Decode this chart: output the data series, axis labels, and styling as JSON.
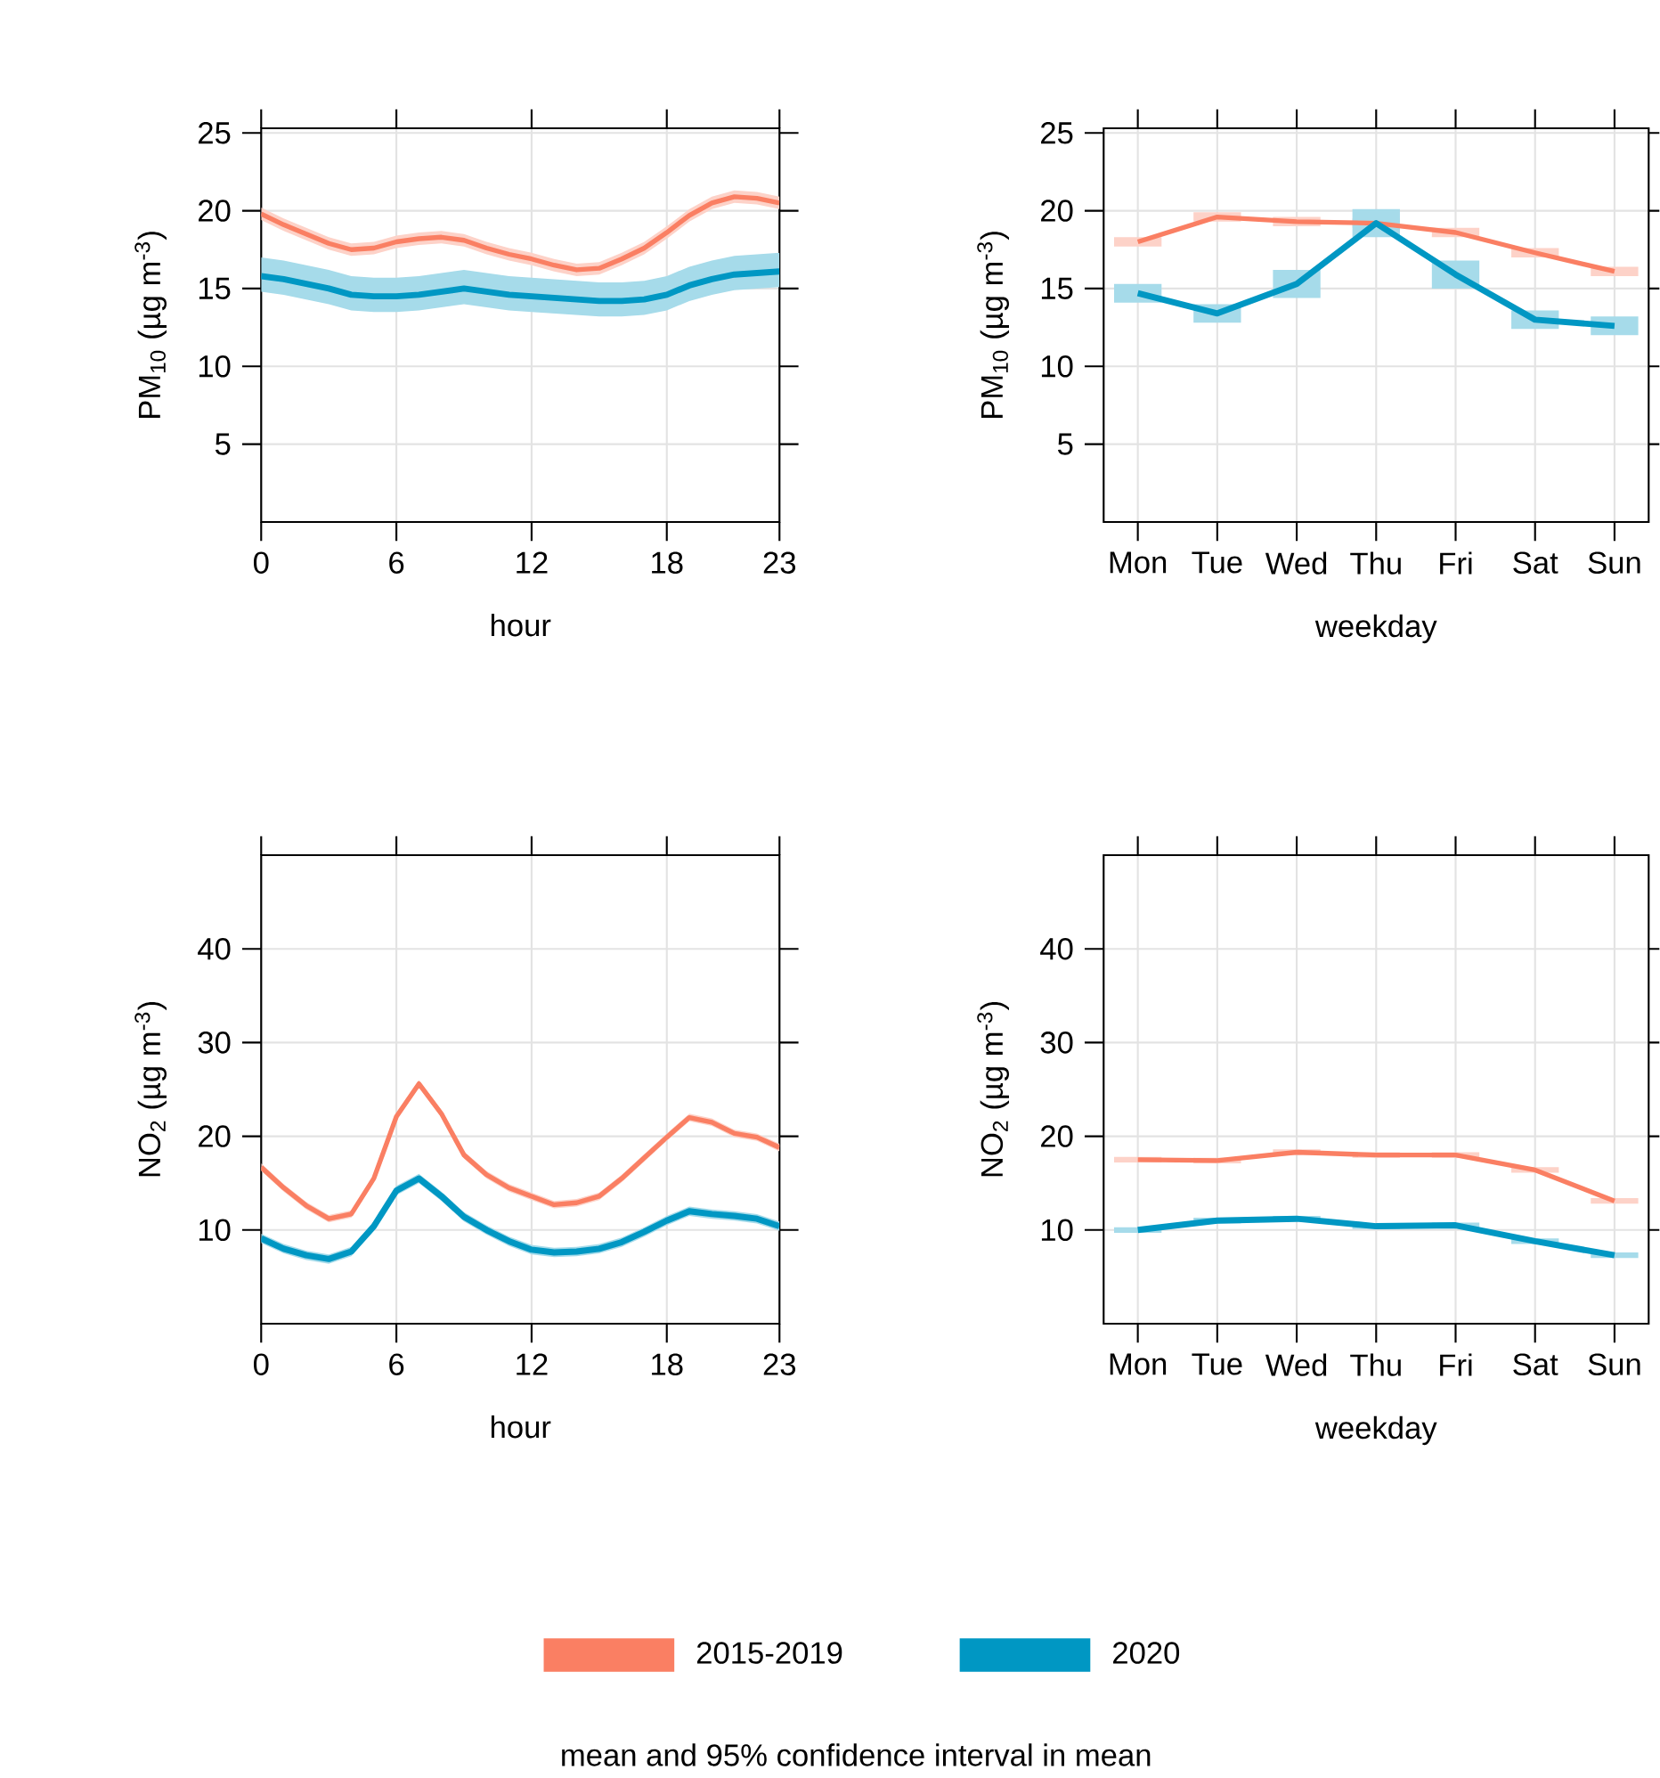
{
  "chart_data": [
    {
      "type": "line",
      "xlabel": "hour",
      "ylabel": "PM$_{10}$ (µg m$^{-3}$)",
      "x": [
        0,
        1,
        2,
        3,
        4,
        5,
        6,
        7,
        8,
        9,
        10,
        11,
        12,
        13,
        14,
        15,
        16,
        17,
        18,
        19,
        20,
        21,
        22,
        23
      ],
      "xlim": [
        0,
        23
      ],
      "xticks": [
        0,
        6,
        12,
        18,
        23
      ],
      "ylim": [
        0,
        25.3
      ],
      "yticks": [
        5,
        10,
        15,
        20,
        25
      ],
      "grid": true,
      "series": [
        {
          "color": "#fa7f63",
          "values": [
            19.8,
            19.1,
            18.5,
            17.9,
            17.5,
            17.6,
            18.0,
            18.2,
            18.3,
            18.1,
            17.6,
            17.2,
            16.9,
            16.5,
            16.2,
            16.3,
            16.9,
            17.6,
            18.6,
            19.7,
            20.5,
            20.9,
            20.8,
            20.5
          ],
          "lower": [
            19.4,
            18.7,
            18.1,
            17.5,
            17.1,
            17.2,
            17.6,
            17.8,
            17.9,
            17.7,
            17.2,
            16.8,
            16.5,
            16.1,
            15.8,
            15.9,
            16.5,
            17.2,
            18.2,
            19.3,
            20.1,
            20.5,
            20.4,
            20.1
          ],
          "upper": [
            20.2,
            19.5,
            18.9,
            18.3,
            17.9,
            18.0,
            18.4,
            18.6,
            18.7,
            18.5,
            18.0,
            17.6,
            17.3,
            16.9,
            16.6,
            16.7,
            17.3,
            18.0,
            19.0,
            20.1,
            20.9,
            21.3,
            21.2,
            20.9
          ]
        },
        {
          "color": "#0097c3",
          "values": [
            15.8,
            15.6,
            15.3,
            15.0,
            14.6,
            14.5,
            14.5,
            14.6,
            14.8,
            15.0,
            14.8,
            14.6,
            14.5,
            14.4,
            14.3,
            14.2,
            14.2,
            14.3,
            14.6,
            15.2,
            15.6,
            15.9,
            16.0,
            16.1
          ],
          "lower": [
            14.8,
            14.6,
            14.3,
            14.0,
            13.6,
            13.5,
            13.5,
            13.6,
            13.8,
            14.0,
            13.8,
            13.6,
            13.5,
            13.4,
            13.3,
            13.2,
            13.2,
            13.3,
            13.6,
            14.2,
            14.6,
            14.9,
            15.0,
            15.1
          ],
          "upper": [
            17.0,
            16.8,
            16.5,
            16.2,
            15.8,
            15.7,
            15.7,
            15.8,
            16.0,
            16.2,
            16.0,
            15.8,
            15.7,
            15.6,
            15.5,
            15.4,
            15.4,
            15.5,
            15.8,
            16.4,
            16.8,
            17.1,
            17.2,
            17.3
          ]
        }
      ]
    },
    {
      "type": "line",
      "xlabel": "weekday",
      "ylabel": "PM$_{10}$ (µg m$^{-3}$)",
      "categories": [
        "Mon",
        "Tue",
        "Wed",
        "Thu",
        "Fri",
        "Sat",
        "Sun"
      ],
      "ylim": [
        0,
        25.3
      ],
      "yticks": [
        5,
        10,
        15,
        20,
        25
      ],
      "grid": true,
      "series": [
        {
          "color": "#fa7f63",
          "values": [
            18.0,
            19.6,
            19.3,
            19.2,
            18.6,
            17.3,
            16.1
          ],
          "errors": [
            [
              17.7,
              18.3
            ],
            [
              19.3,
              19.9
            ],
            [
              19.0,
              19.6
            ],
            [
              18.9,
              19.5
            ],
            [
              18.3,
              18.9
            ],
            [
              17.0,
              17.6
            ],
            [
              15.8,
              16.4
            ]
          ]
        },
        {
          "color": "#0097c3",
          "values": [
            14.7,
            13.4,
            15.3,
            19.2,
            15.9,
            13.0,
            12.6
          ],
          "errors": [
            [
              14.1,
              15.3
            ],
            [
              12.8,
              14.0
            ],
            [
              14.4,
              16.2
            ],
            [
              18.3,
              20.1
            ],
            [
              15.0,
              16.8
            ],
            [
              12.4,
              13.6
            ],
            [
              12.0,
              13.2
            ]
          ]
        }
      ]
    },
    {
      "type": "line",
      "xlabel": "hour",
      "ylabel": "NO$_{2}$ (µg m$^{-3}$)",
      "x": [
        0,
        1,
        2,
        3,
        4,
        5,
        6,
        7,
        8,
        9,
        10,
        11,
        12,
        13,
        14,
        15,
        16,
        17,
        18,
        19,
        20,
        21,
        22,
        23
      ],
      "xlim": [
        0,
        23
      ],
      "xticks": [
        0,
        6,
        12,
        18,
        23
      ],
      "ylim": [
        0,
        50
      ],
      "yticks": [
        10,
        20,
        30,
        40
      ],
      "grid": true,
      "series": [
        {
          "color": "#fa7f63",
          "values": [
            16.7,
            14.5,
            12.6,
            11.2,
            11.7,
            15.5,
            22.1,
            25.6,
            22.4,
            18.0,
            15.9,
            14.5,
            13.6,
            12.7,
            12.9,
            13.6,
            15.5,
            17.7,
            19.9,
            22.0,
            21.5,
            20.3,
            19.9,
            18.8
          ],
          "lower": [
            16.3,
            14.1,
            12.2,
            10.8,
            11.3,
            15.1,
            21.7,
            25.2,
            22.0,
            17.6,
            15.5,
            14.1,
            13.2,
            12.3,
            12.5,
            13.2,
            15.1,
            17.3,
            19.5,
            21.6,
            21.1,
            19.9,
            19.5,
            18.4
          ],
          "upper": [
            17.1,
            14.9,
            13.0,
            11.6,
            12.1,
            15.9,
            22.5,
            26.0,
            22.8,
            18.4,
            16.3,
            14.9,
            14.0,
            13.1,
            13.3,
            14.0,
            15.9,
            18.1,
            20.3,
            22.4,
            21.9,
            20.7,
            20.3,
            19.2
          ]
        },
        {
          "color": "#0097c3",
          "values": [
            9.1,
            8.0,
            7.3,
            6.9,
            7.7,
            10.4,
            14.2,
            15.5,
            13.6,
            11.4,
            10.0,
            8.8,
            7.9,
            7.6,
            7.7,
            8.0,
            8.7,
            9.8,
            11.0,
            12.0,
            11.7,
            11.5,
            11.2,
            10.4
          ],
          "lower": [
            8.6,
            7.5,
            6.8,
            6.4,
            7.2,
            9.9,
            13.7,
            15.0,
            13.1,
            10.9,
            9.5,
            8.3,
            7.4,
            7.1,
            7.2,
            7.5,
            8.2,
            9.3,
            10.5,
            11.5,
            11.2,
            11.0,
            10.7,
            9.9
          ],
          "upper": [
            9.6,
            8.5,
            7.8,
            7.4,
            8.2,
            10.9,
            14.7,
            16.0,
            14.1,
            11.9,
            10.5,
            9.3,
            8.4,
            8.1,
            8.2,
            8.5,
            9.2,
            10.3,
            11.5,
            12.5,
            12.2,
            12.0,
            11.7,
            10.9
          ]
        }
      ]
    },
    {
      "type": "line",
      "xlabel": "weekday",
      "ylabel": "NO$_{2}$ (µg m$^{-3}$)",
      "categories": [
        "Mon",
        "Tue",
        "Wed",
        "Thu",
        "Fri",
        "Sat",
        "Sun"
      ],
      "ylim": [
        0,
        50
      ],
      "yticks": [
        10,
        20,
        30,
        40
      ],
      "grid": true,
      "legend": "bottom",
      "annotations": [
        "mean and 95% confidence interval in mean"
      ],
      "series": [
        {
          "name": "2015-2019",
          "color": "#fa7f63",
          "values": [
            17.5,
            17.4,
            18.3,
            18.0,
            18.0,
            16.4,
            13.1
          ],
          "errors": [
            [
              17.2,
              17.8
            ],
            [
              17.1,
              17.7
            ],
            [
              18.0,
              18.6
            ],
            [
              17.7,
              18.3
            ],
            [
              17.7,
              18.3
            ],
            [
              16.1,
              16.7
            ],
            [
              12.8,
              13.4
            ]
          ]
        },
        {
          "name": "2020",
          "color": "#0097c3",
          "values": [
            10.0,
            11.0,
            11.2,
            10.4,
            10.5,
            8.8,
            7.3
          ],
          "errors": [
            [
              9.7,
              10.3
            ],
            [
              10.7,
              11.3
            ],
            [
              10.9,
              11.5
            ],
            [
              10.1,
              10.7
            ],
            [
              10.2,
              10.8
            ],
            [
              8.5,
              9.1
            ],
            [
              7.0,
              7.6
            ]
          ]
        }
      ]
    }
  ]
}
